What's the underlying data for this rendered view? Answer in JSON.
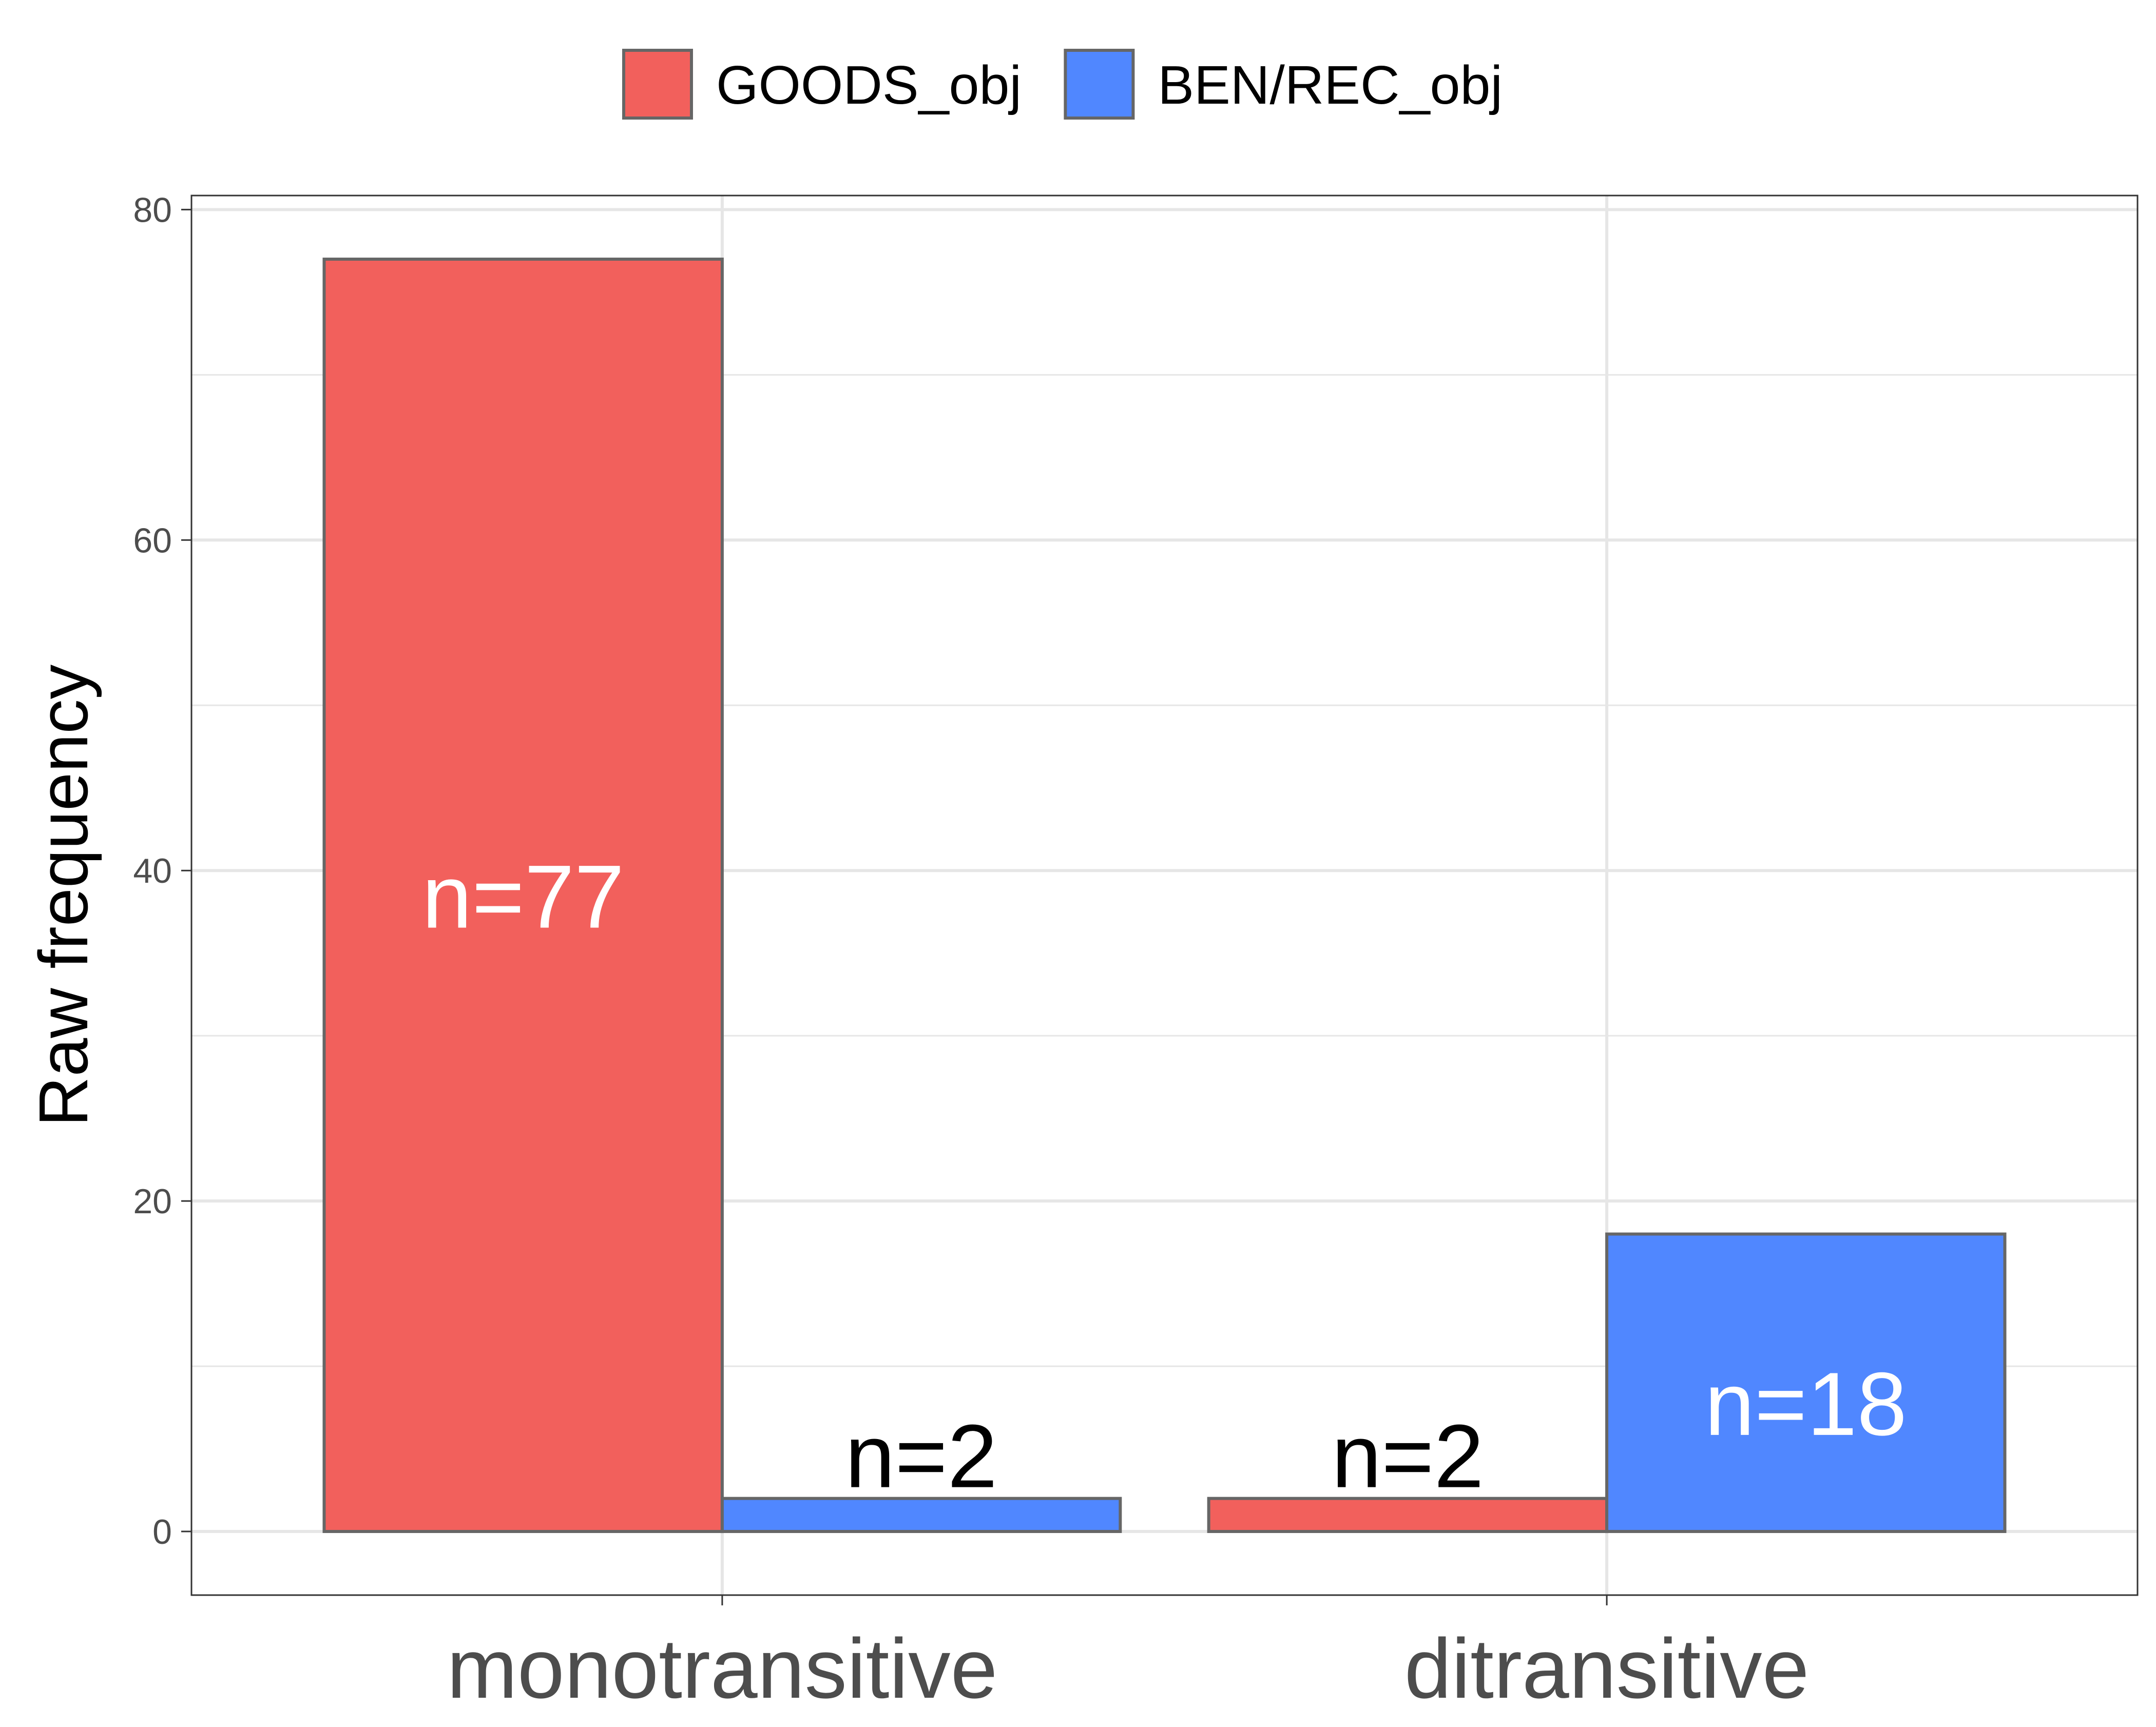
{
  "chart_data": {
    "type": "bar",
    "title": "",
    "xlabel": "",
    "ylabel": "Raw frequency",
    "categories": [
      "monotransitive",
      "ditransitive"
    ],
    "series": [
      {
        "name": "GOODS_obj",
        "color": "#F2605C",
        "values": [
          77,
          2
        ],
        "labels": [
          "n=77",
          "n=2"
        ]
      },
      {
        "name": "BEN/REC_obj",
        "color": "#5087FF",
        "values": [
          2,
          18
        ],
        "labels": [
          "n=2",
          "n=18"
        ]
      }
    ],
    "ylim": [
      -3.85,
      80.85
    ],
    "yticks": [
      0,
      20,
      40,
      60,
      80
    ],
    "legend_position": "top",
    "grid": true,
    "colors": {
      "bar_outline": "#666666",
      "grid": "#E6E6E6",
      "panel_border": "#333333",
      "tick_label": "#4D4D4D",
      "axis_title": "#000000",
      "label_inside": "#FFFFFF",
      "label_outside": "#000000"
    }
  }
}
